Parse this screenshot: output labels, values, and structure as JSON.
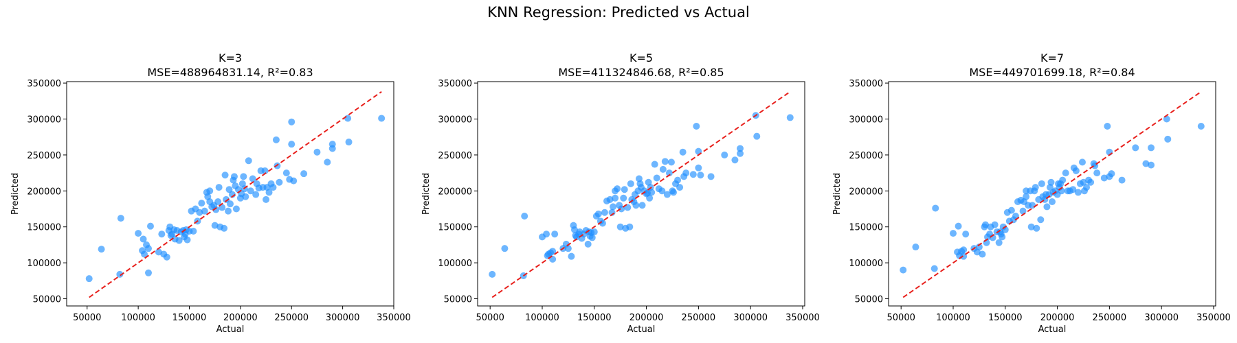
{
  "suptitle": "KNN Regression: Predicted vs Actual",
  "colors": {
    "points": "#1f8fff",
    "diagonal": "#e8201c"
  },
  "chart_data": [
    {
      "type": "scatter",
      "title": "K=3",
      "subtitle": "MSE=488964831.14, R²=0.83",
      "xlabel": "Actual",
      "ylabel": "Predicted",
      "xlim": [
        30000,
        350000
      ],
      "ylim": [
        40000,
        352000
      ],
      "xticks": [
        50000,
        100000,
        150000,
        200000,
        250000,
        300000,
        350000
      ],
      "yticks": [
        50000,
        100000,
        150000,
        200000,
        250000,
        300000,
        350000
      ],
      "reference_line": {
        "style": "dashed",
        "from": [
          52000,
          52000
        ],
        "to": [
          338000,
          338000
        ]
      },
      "points": [
        [
          52000,
          78000
        ],
        [
          64000,
          119000
        ],
        [
          82000,
          84000
        ],
        [
          83000,
          162000
        ],
        [
          100000,
          141000
        ],
        [
          104000,
          117000
        ],
        [
          105000,
          133000
        ],
        [
          106000,
          112000
        ],
        [
          108000,
          125000
        ],
        [
          110000,
          120000
        ],
        [
          110000,
          86000
        ],
        [
          112000,
          151000
        ],
        [
          120000,
          115000
        ],
        [
          123000,
          140000
        ],
        [
          125000,
          112000
        ],
        [
          128000,
          108000
        ],
        [
          130000,
          145000
        ],
        [
          131000,
          150000
        ],
        [
          132000,
          138000
        ],
        [
          133000,
          140000
        ],
        [
          135000,
          146000
        ],
        [
          136000,
          133000
        ],
        [
          138000,
          145000
        ],
        [
          140000,
          131000
        ],
        [
          142000,
          143000
        ],
        [
          144000,
          145000
        ],
        [
          145000,
          136000
        ],
        [
          146000,
          140000
        ],
        [
          147000,
          146000
        ],
        [
          148000,
          132000
        ],
        [
          150000,
          144000
        ],
        [
          152000,
          172000
        ],
        [
          154000,
          144000
        ],
        [
          156000,
          175000
        ],
        [
          158000,
          158000
        ],
        [
          160000,
          170000
        ],
        [
          162000,
          183000
        ],
        [
          165000,
          172000
        ],
        [
          167000,
          198000
        ],
        [
          168000,
          192000
        ],
        [
          170000,
          200000
        ],
        [
          170000,
          185000
        ],
        [
          172000,
          178000
        ],
        [
          174000,
          180000
        ],
        [
          175000,
          152000
        ],
        [
          176000,
          174000
        ],
        [
          178000,
          185000
        ],
        [
          179000,
          205000
        ],
        [
          180000,
          150000
        ],
        [
          182000,
          177000
        ],
        [
          184000,
          148000
        ],
        [
          185000,
          222000
        ],
        [
          186000,
          188000
        ],
        [
          188000,
          172000
        ],
        [
          189000,
          202000
        ],
        [
          190000,
          182000
        ],
        [
          192000,
          195000
        ],
        [
          193000,
          215000
        ],
        [
          194000,
          220000
        ],
        [
          195000,
          207000
        ],
        [
          196000,
          175000
        ],
        [
          198000,
          202000
        ],
        [
          200000,
          190000
        ],
        [
          201000,
          196000
        ],
        [
          202000,
          210000
        ],
        [
          203000,
          220000
        ],
        [
          204000,
          203000
        ],
        [
          205000,
          192000
        ],
        [
          208000,
          242000
        ],
        [
          210000,
          200000
        ],
        [
          212000,
          217000
        ],
        [
          215000,
          195000
        ],
        [
          216000,
          210000
        ],
        [
          218000,
          204000
        ],
        [
          220000,
          228000
        ],
        [
          222000,
          205000
        ],
        [
          224000,
          228000
        ],
        [
          225000,
          188000
        ],
        [
          226000,
          205000
        ],
        [
          228000,
          198000
        ],
        [
          230000,
          210000
        ],
        [
          232000,
          205000
        ],
        [
          235000,
          271000
        ],
        [
          236000,
          235000
        ],
        [
          238000,
          212000
        ],
        [
          245000,
          225000
        ],
        [
          248000,
          216000
        ],
        [
          250000,
          296000
        ],
        [
          250000,
          265000
        ],
        [
          252000,
          214000
        ],
        [
          262000,
          224000
        ],
        [
          275000,
          254000
        ],
        [
          285000,
          240000
        ],
        [
          290000,
          259000
        ],
        [
          290000,
          265000
        ],
        [
          305000,
          301000
        ],
        [
          306000,
          268000
        ],
        [
          338000,
          301000
        ]
      ]
    },
    {
      "type": "scatter",
      "title": "K=5",
      "subtitle": "MSE=411324846.68, R²=0.85",
      "xlabel": "Actual",
      "ylabel": "Predicted",
      "xlim": [
        38000,
        352000
      ],
      "ylim": [
        40000,
        352000
      ],
      "xticks": [
        50000,
        100000,
        150000,
        200000,
        250000,
        300000,
        350000
      ],
      "yticks": [
        50000,
        100000,
        150000,
        200000,
        250000,
        300000,
        350000
      ],
      "reference_line": {
        "style": "dashed",
        "from": [
          52000,
          52000
        ],
        "to": [
          338000,
          338000
        ]
      },
      "points": [
        [
          52000,
          84000
        ],
        [
          64000,
          120000
        ],
        [
          82000,
          82000
        ],
        [
          83000,
          165000
        ],
        [
          100000,
          136000
        ],
        [
          104000,
          140000
        ],
        [
          105000,
          110000
        ],
        [
          106000,
          112000
        ],
        [
          108000,
          114000
        ],
        [
          110000,
          105000
        ],
        [
          110000,
          116000
        ],
        [
          112000,
          140000
        ],
        [
          120000,
          120000
        ],
        [
          123000,
          126000
        ],
        [
          125000,
          120000
        ],
        [
          128000,
          109000
        ],
        [
          130000,
          152000
        ],
        [
          131000,
          146000
        ],
        [
          132000,
          138000
        ],
        [
          133000,
          136000
        ],
        [
          135000,
          140000
        ],
        [
          136000,
          143000
        ],
        [
          138000,
          134000
        ],
        [
          140000,
          140000
        ],
        [
          142000,
          145000
        ],
        [
          144000,
          126000
        ],
        [
          145000,
          143000
        ],
        [
          146000,
          137000
        ],
        [
          147000,
          142000
        ],
        [
          148000,
          135000
        ],
        [
          150000,
          143000
        ],
        [
          152000,
          165000
        ],
        [
          154000,
          168000
        ],
        [
          156000,
          158000
        ],
        [
          158000,
          155000
        ],
        [
          160000,
          170000
        ],
        [
          162000,
          186000
        ],
        [
          165000,
          188000
        ],
        [
          167000,
          170000
        ],
        [
          168000,
          178000
        ],
        [
          170000,
          200000
        ],
        [
          170000,
          190000
        ],
        [
          172000,
          203000
        ],
        [
          174000,
          180000
        ],
        [
          175000,
          150000
        ],
        [
          176000,
          175000
        ],
        [
          178000,
          190000
        ],
        [
          179000,
          202000
        ],
        [
          180000,
          148000
        ],
        [
          182000,
          177000
        ],
        [
          184000,
          150000
        ],
        [
          185000,
          210000
        ],
        [
          186000,
          188000
        ],
        [
          188000,
          185000
        ],
        [
          189000,
          195000
        ],
        [
          190000,
          180000
        ],
        [
          192000,
          200000
        ],
        [
          193000,
          217000
        ],
        [
          194000,
          210000
        ],
        [
          195000,
          205000
        ],
        [
          196000,
          180000
        ],
        [
          198000,
          200000
        ],
        [
          200000,
          196000
        ],
        [
          201000,
          197000
        ],
        [
          202000,
          212000
        ],
        [
          203000,
          190000
        ],
        [
          204000,
          205000
        ],
        [
          205000,
          198000
        ],
        [
          208000,
          237000
        ],
        [
          210000,
          218000
        ],
        [
          212000,
          203000
        ],
        [
          215000,
          200000
        ],
        [
          216000,
          230000
        ],
        [
          218000,
          241000
        ],
        [
          220000,
          195000
        ],
        [
          222000,
          225000
        ],
        [
          224000,
          240000
        ],
        [
          225000,
          200000
        ],
        [
          226000,
          198000
        ],
        [
          228000,
          210000
        ],
        [
          230000,
          215000
        ],
        [
          232000,
          205000
        ],
        [
          235000,
          254000
        ],
        [
          236000,
          220000
        ],
        [
          238000,
          225000
        ],
        [
          245000,
          223000
        ],
        [
          248000,
          290000
        ],
        [
          250000,
          232000
        ],
        [
          250000,
          255000
        ],
        [
          252000,
          222000
        ],
        [
          262000,
          220000
        ],
        [
          275000,
          250000
        ],
        [
          285000,
          243000
        ],
        [
          290000,
          252000
        ],
        [
          290000,
          259000
        ],
        [
          305000,
          305000
        ],
        [
          306000,
          276000
        ],
        [
          338000,
          302000
        ]
      ]
    },
    {
      "type": "scatter",
      "title": "K=7",
      "subtitle": "MSE=449701699.18, R²=0.84",
      "xlabel": "Actual",
      "ylabel": "Predicted",
      "xlim": [
        38000,
        352000
      ],
      "ylim": [
        40000,
        352000
      ],
      "xticks": [
        50000,
        100000,
        150000,
        200000,
        250000,
        300000,
        350000
      ],
      "yticks": [
        50000,
        100000,
        150000,
        200000,
        250000,
        300000,
        350000
      ],
      "reference_line": {
        "style": "dashed",
        "from": [
          52000,
          52000
        ],
        "to": [
          338000,
          338000
        ]
      },
      "points": [
        [
          52000,
          90000
        ],
        [
          64000,
          122000
        ],
        [
          82000,
          92000
        ],
        [
          83000,
          176000
        ],
        [
          100000,
          141000
        ],
        [
          104000,
          115000
        ],
        [
          105000,
          151000
        ],
        [
          106000,
          110000
        ],
        [
          108000,
          116000
        ],
        [
          110000,
          118000
        ],
        [
          110000,
          109000
        ],
        [
          112000,
          140000
        ],
        [
          120000,
          120000
        ],
        [
          123000,
          115000
        ],
        [
          125000,
          122000
        ],
        [
          128000,
          112000
        ],
        [
          130000,
          150000
        ],
        [
          131000,
          153000
        ],
        [
          132000,
          128000
        ],
        [
          133000,
          136000
        ],
        [
          135000,
          140000
        ],
        [
          136000,
          150000
        ],
        [
          138000,
          135000
        ],
        [
          140000,
          153000
        ],
        [
          142000,
          143000
        ],
        [
          144000,
          128000
        ],
        [
          145000,
          143000
        ],
        [
          146000,
          140000
        ],
        [
          147000,
          136000
        ],
        [
          148000,
          150000
        ],
        [
          150000,
          146000
        ],
        [
          152000,
          170000
        ],
        [
          154000,
          158000
        ],
        [
          156000,
          173000
        ],
        [
          158000,
          160000
        ],
        [
          160000,
          165000
        ],
        [
          162000,
          185000
        ],
        [
          165000,
          187000
        ],
        [
          167000,
          172000
        ],
        [
          168000,
          185000
        ],
        [
          170000,
          192000
        ],
        [
          170000,
          200000
        ],
        [
          172000,
          180000
        ],
        [
          174000,
          200000
        ],
        [
          175000,
          150000
        ],
        [
          176000,
          180000
        ],
        [
          178000,
          200000
        ],
        [
          179000,
          205000
        ],
        [
          180000,
          148000
        ],
        [
          182000,
          188000
        ],
        [
          184000,
          160000
        ],
        [
          185000,
          210000
        ],
        [
          186000,
          192000
        ],
        [
          188000,
          188000
        ],
        [
          189000,
          195000
        ],
        [
          190000,
          178000
        ],
        [
          192000,
          195000
        ],
        [
          193000,
          205000
        ],
        [
          194000,
          212000
        ],
        [
          195000,
          185000
        ],
        [
          196000,
          198000
        ],
        [
          198000,
          200000
        ],
        [
          200000,
          195000
        ],
        [
          201000,
          210000
        ],
        [
          202000,
          205000
        ],
        [
          203000,
          210000
        ],
        [
          204000,
          200000
        ],
        [
          205000,
          215000
        ],
        [
          208000,
          225000
        ],
        [
          210000,
          200000
        ],
        [
          212000,
          200000
        ],
        [
          215000,
          202000
        ],
        [
          216000,
          232000
        ],
        [
          218000,
          228000
        ],
        [
          220000,
          198000
        ],
        [
          222000,
          210000
        ],
        [
          224000,
          240000
        ],
        [
          225000,
          212000
        ],
        [
          226000,
          200000
        ],
        [
          228000,
          205000
        ],
        [
          230000,
          215000
        ],
        [
          232000,
          212000
        ],
        [
          235000,
          238000
        ],
        [
          236000,
          235000
        ],
        [
          238000,
          225000
        ],
        [
          245000,
          218000
        ],
        [
          248000,
          290000
        ],
        [
          250000,
          220000
        ],
        [
          250000,
          254000
        ],
        [
          252000,
          224000
        ],
        [
          262000,
          215000
        ],
        [
          275000,
          260000
        ],
        [
          285000,
          238000
        ],
        [
          290000,
          236000
        ],
        [
          290000,
          260000
        ],
        [
          305000,
          300000
        ],
        [
          306000,
          272000
        ],
        [
          338000,
          290000
        ]
      ]
    }
  ]
}
